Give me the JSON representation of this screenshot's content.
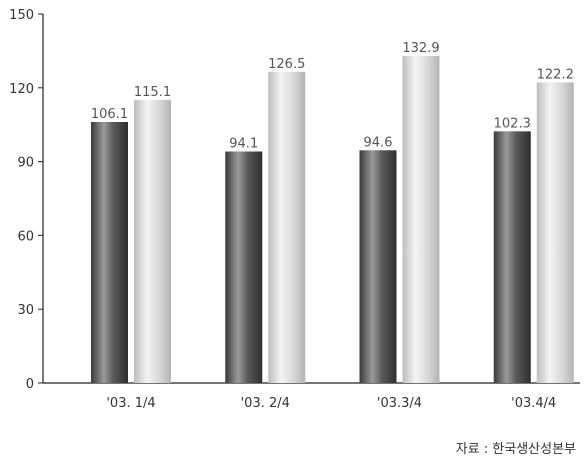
{
  "chart_data": {
    "type": "bar",
    "categories": [
      "'03. 1/4",
      "'03. 2/4",
      "'03.3/4",
      "'03.4/4"
    ],
    "series": [
      {
        "values": [
          106.1,
          94.1,
          94.6,
          102.3
        ],
        "color": "#6e6e6e"
      },
      {
        "values": [
          115.1,
          126.5,
          132.9,
          122.2
        ],
        "color": "#d4d4d4"
      }
    ],
    "yticks": [
      0,
      30,
      60,
      90,
      120,
      150
    ],
    "ylim": [
      0,
      150
    ],
    "grid": false,
    "source_note": "자료 : 한국생산성본부"
  }
}
